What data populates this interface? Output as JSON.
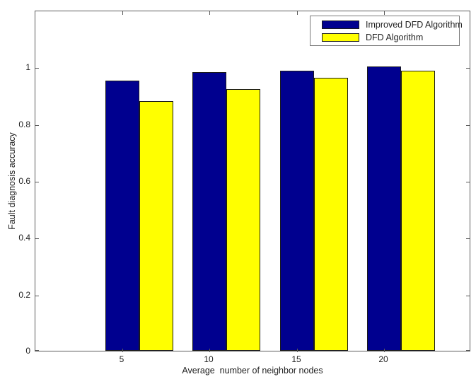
{
  "chart_data": {
    "type": "bar",
    "title": "",
    "xlabel": "Average  number of neighbor nodes",
    "ylabel": "Fault diagnosis accuracy",
    "categories": [
      "5",
      "10",
      "15",
      "20"
    ],
    "x": [
      5,
      10,
      15,
      20
    ],
    "series": [
      {
        "name": "Improved DFD Algorithm",
        "color": "#00008F",
        "values": [
          0.95,
          0.98,
          0.985,
          1.0
        ]
      },
      {
        "name": "DFD Algorithm",
        "color": "#FFFF00",
        "values": [
          0.88,
          0.92,
          0.96,
          0.985
        ]
      }
    ],
    "xlim": [
      0,
      25
    ],
    "ylim": [
      0,
      1.2
    ],
    "yticks": [
      0,
      0.2,
      0.4,
      0.6,
      0.8,
      1
    ],
    "ytick_labels": [
      "0",
      "0.2",
      "0.4",
      "0.6",
      "0.8",
      "1"
    ],
    "xticks": [
      5,
      10,
      15,
      20
    ],
    "grid": false,
    "legend_position": "top-right",
    "bar_edge_color": "#1a1a1a",
    "axis_color": "#5a5a5a",
    "background_color": "#ffffff"
  }
}
